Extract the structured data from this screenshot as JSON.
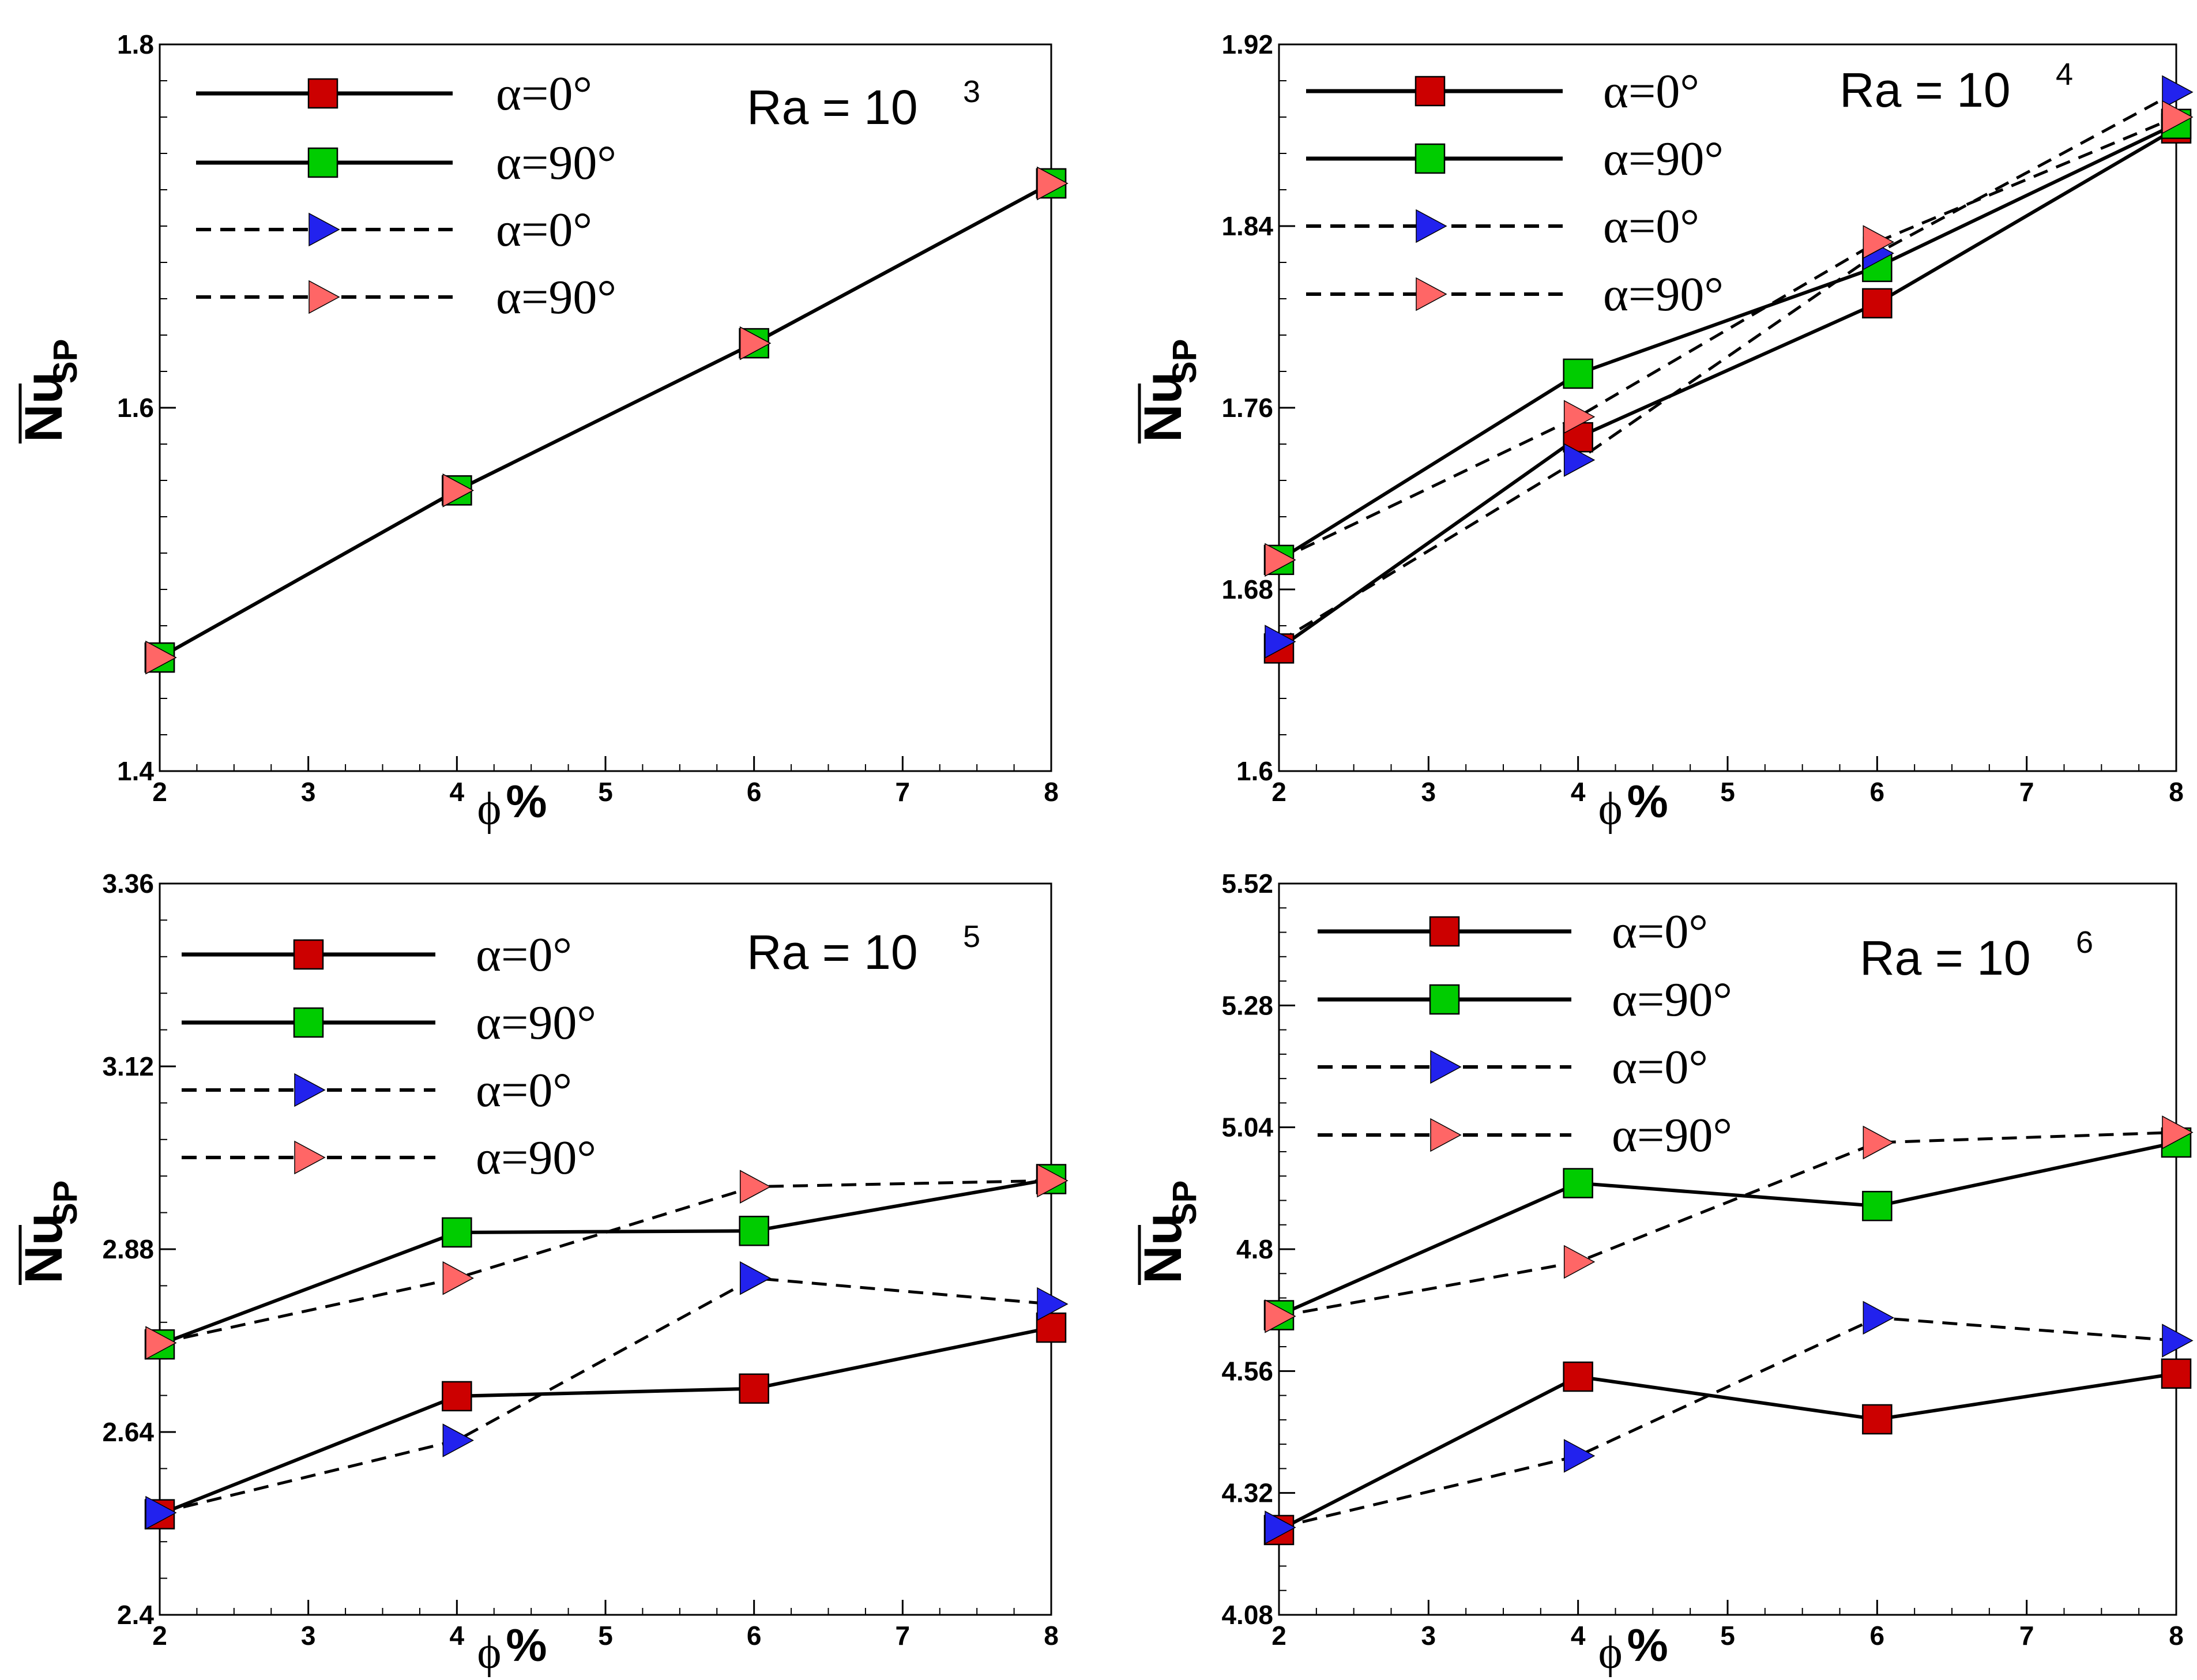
{
  "chart_data": [
    {
      "type": "line",
      "title": "Ra = 10^3",
      "ra_base": "Ra = 10",
      "ra_exp": "3",
      "xlabel_symbol": "ϕ",
      "xlabel_unit": "%",
      "ylabel_main": "Nu",
      "ylabel_sub": "SP",
      "xlim": [
        2,
        8
      ],
      "ylim": [
        1.4,
        1.8
      ],
      "x_ticks": [
        2,
        3,
        4,
        5,
        6,
        7,
        8
      ],
      "y_ticks": [
        1.4,
        1.6,
        1.8
      ],
      "y_tick_labels": [
        "1.4",
        "1.6",
        "1.8"
      ],
      "y_minor_step": 0.02,
      "x": [
        2,
        4,
        6,
        8
      ],
      "series": [
        {
          "name": "α=0°",
          "line": "solid",
          "marker": "square",
          "color": "#cc0000",
          "values": [
            1.4625,
            1.5545,
            1.6355,
            1.7235
          ]
        },
        {
          "name": "α=90°",
          "line": "solid",
          "marker": "square",
          "color": "#00cc00",
          "values": [
            1.4625,
            1.5545,
            1.6355,
            1.7235
          ]
        },
        {
          "name": "α=0°",
          "line": "dashed",
          "marker": "triangle-right",
          "color": "#2222ee",
          "values": [
            1.4625,
            1.5545,
            1.6355,
            1.7235
          ]
        },
        {
          "name": "α=90°",
          "line": "dashed",
          "marker": "triangle-right",
          "color": "#ff6666",
          "values": [
            1.4625,
            1.5545,
            1.6355,
            1.7235
          ]
        }
      ]
    },
    {
      "type": "line",
      "title": "Ra = 10^4",
      "ra_base": "Ra = 10",
      "ra_exp": "4",
      "xlabel_symbol": "ϕ",
      "xlabel_unit": "%",
      "ylabel_main": "Nu",
      "ylabel_sub": "SP",
      "xlim": [
        2,
        8
      ],
      "ylim": [
        1.6,
        1.92
      ],
      "x_ticks": [
        2,
        3,
        4,
        5,
        6,
        7,
        8
      ],
      "y_ticks": [
        1.6,
        1.68,
        1.76,
        1.84,
        1.92
      ],
      "y_tick_labels": [
        "1.6",
        "1.68",
        "1.76",
        "1.84",
        "1.92"
      ],
      "y_minor_step": 0.016,
      "x": [
        2,
        4,
        6,
        8
      ],
      "series": [
        {
          "name": "α=0°",
          "line": "solid",
          "marker": "square",
          "color": "#cc0000",
          "values": [
            1.654,
            1.747,
            1.806,
            1.883
          ]
        },
        {
          "name": "α=90°",
          "line": "solid",
          "marker": "square",
          "color": "#00cc00",
          "values": [
            1.693,
            1.775,
            1.822,
            1.885
          ]
        },
        {
          "name": "α=0°",
          "line": "dashed",
          "marker": "triangle-right",
          "color": "#2222ee",
          "values": [
            1.657,
            1.737,
            1.828,
            1.899
          ]
        },
        {
          "name": "α=90°",
          "line": "dashed",
          "marker": "triangle-right",
          "color": "#ff6666",
          "values": [
            1.693,
            1.756,
            1.833,
            1.888
          ]
        }
      ]
    },
    {
      "type": "line",
      "title": "Ra = 10^5",
      "ra_base": "Ra = 10",
      "ra_exp": "5",
      "xlabel_symbol": "ϕ",
      "xlabel_unit": "%",
      "ylabel_main": "Nu",
      "ylabel_sub": "SP",
      "xlim": [
        2,
        8
      ],
      "ylim": [
        2.4,
        3.36
      ],
      "x_ticks": [
        2,
        3,
        4,
        5,
        6,
        7,
        8
      ],
      "y_ticks": [
        2.4,
        2.64,
        2.88,
        3.12,
        3.36
      ],
      "y_tick_labels": [
        "2.4",
        "2.64",
        "2.88",
        "3.12",
        "3.36"
      ],
      "y_minor_step": 0.048,
      "x": [
        2,
        4,
        6,
        8
      ],
      "series": [
        {
          "name": "α=0°",
          "line": "solid",
          "marker": "square",
          "color": "#cc0000",
          "values": [
            2.532,
            2.687,
            2.697,
            2.777
          ]
        },
        {
          "name": "α=90°",
          "line": "solid",
          "marker": "square",
          "color": "#00cc00",
          "values": [
            2.755,
            2.902,
            2.904,
            2.972
          ]
        },
        {
          "name": "α=0°",
          "line": "dashed",
          "marker": "triangle-right",
          "color": "#2222ee",
          "values": [
            2.534,
            2.629,
            2.842,
            2.808
          ]
        },
        {
          "name": "α=90°",
          "line": "dashed",
          "marker": "triangle-right",
          "color": "#ff6666",
          "values": [
            2.757,
            2.842,
            2.962,
            2.97
          ]
        }
      ]
    },
    {
      "type": "line",
      "title": "Ra = 10^6",
      "ra_base": "Ra = 10",
      "ra_exp": "6",
      "xlabel_symbol": "ϕ",
      "xlabel_unit": "%",
      "ylabel_main": "Nu",
      "ylabel_sub": "SP",
      "xlim": [
        2,
        8
      ],
      "ylim": [
        4.08,
        5.52
      ],
      "x_ticks": [
        2,
        3,
        4,
        5,
        6,
        7,
        8
      ],
      "y_ticks": [
        4.08,
        4.32,
        4.56,
        4.8,
        5.04,
        5.28,
        5.52
      ],
      "y_tick_labels": [
        "4.08",
        "4.32",
        "4.56",
        "4.8",
        "5.04",
        "5.28",
        "5.52"
      ],
      "y_minor_step": 0.048,
      "x": [
        2,
        4,
        6,
        8
      ],
      "series": [
        {
          "name": "α=0°",
          "line": "solid",
          "marker": "square",
          "color": "#cc0000",
          "values": [
            4.247,
            4.549,
            4.465,
            4.555
          ]
        },
        {
          "name": "α=90°",
          "line": "solid",
          "marker": "square",
          "color": "#00cc00",
          "values": [
            4.67,
            4.93,
            4.885,
            5.01
          ]
        },
        {
          "name": "α=0°",
          "line": "dashed",
          "marker": "triangle-right",
          "color": "#2222ee",
          "values": [
            4.252,
            4.393,
            4.665,
            4.62
          ]
        },
        {
          "name": "α=90°",
          "line": "dashed",
          "marker": "triangle-right",
          "color": "#ff6666",
          "values": [
            4.668,
            4.775,
            5.01,
            5.03
          ]
        }
      ]
    }
  ]
}
